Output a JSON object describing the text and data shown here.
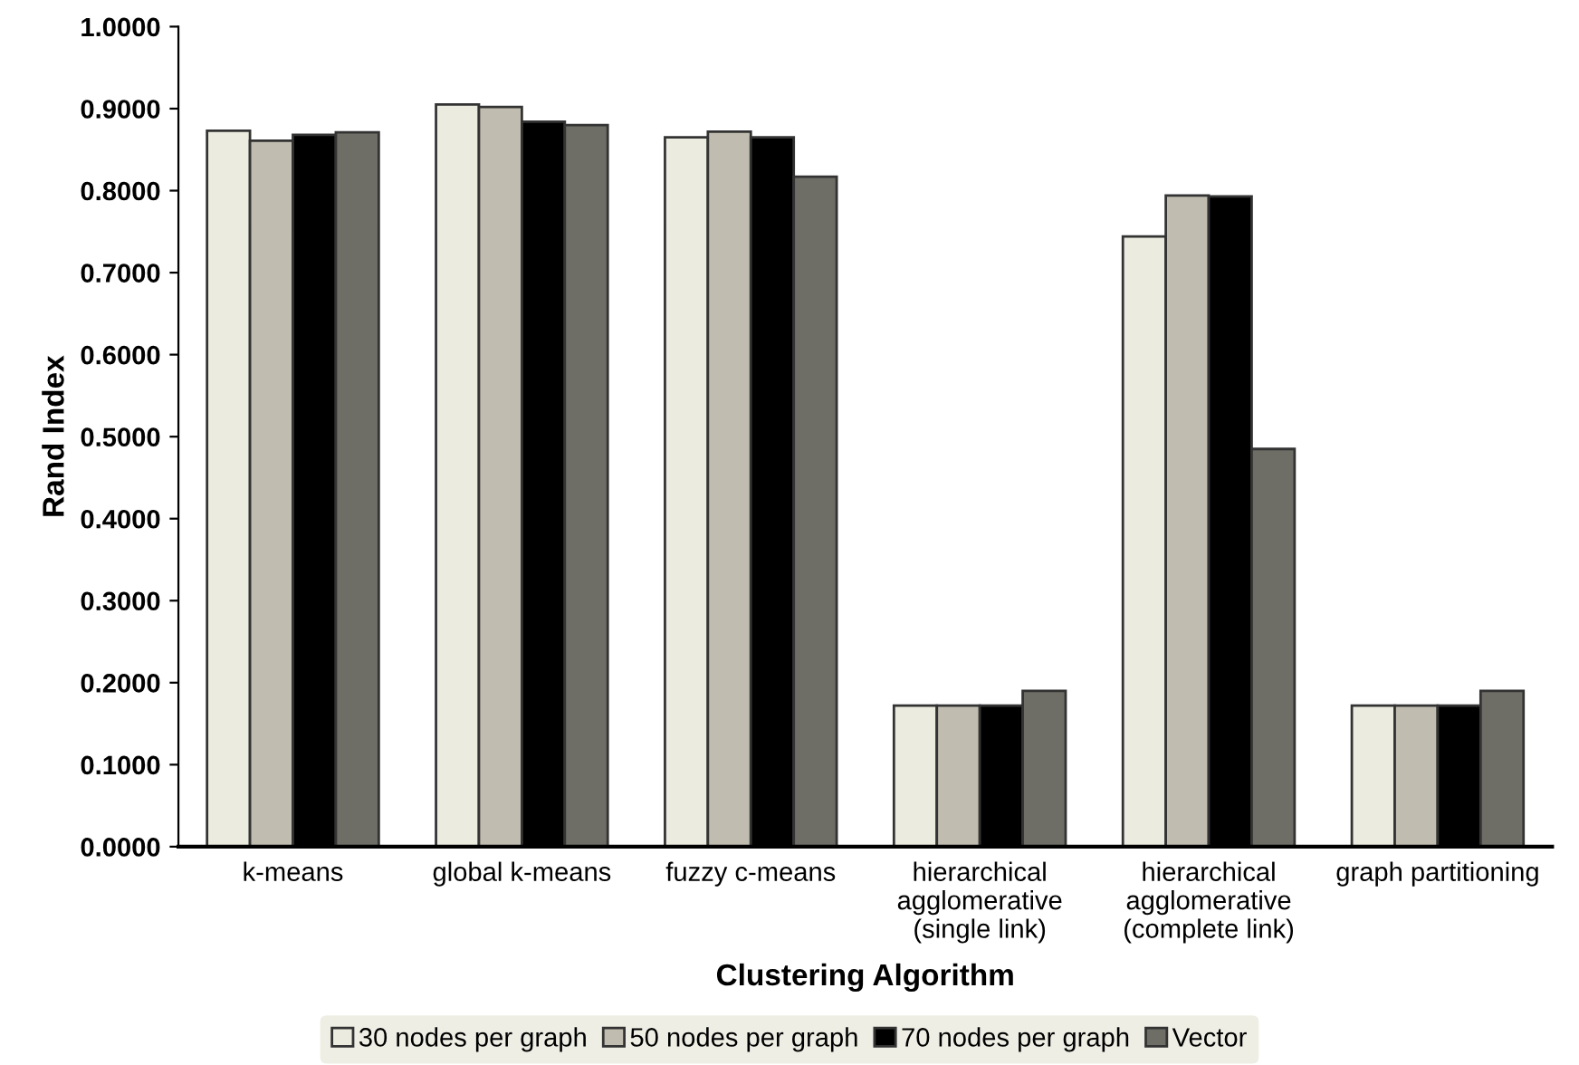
{
  "chart_data": {
    "type": "bar",
    "xlabel": "Clustering Algorithm",
    "ylabel": "Rand Index",
    "categories": [
      "k-means",
      "global k-means",
      "fuzzy c-means",
      "hierarchical\nagglomerative\n(single link)",
      "hierarchical\nagglomerative\n(complete link)",
      "graph partitioning"
    ],
    "series": [
      {
        "name": "30 nodes per graph",
        "color": "#ebebdf",
        "values": [
          0.873,
          0.905,
          0.865,
          0.172,
          0.744,
          0.172
        ]
      },
      {
        "name": "50 nodes per graph",
        "color": "#c0bdb0",
        "values": [
          0.861,
          0.902,
          0.872,
          0.172,
          0.794,
          0.172
        ]
      },
      {
        "name": "70 nodes per graph",
        "color": "#000000",
        "values": [
          0.868,
          0.884,
          0.865,
          0.172,
          0.793,
          0.172
        ]
      },
      {
        "name": "Vector",
        "color": "#6e6e66",
        "values": [
          0.871,
          0.88,
          0.817,
          0.19,
          0.485,
          0.19
        ]
      }
    ],
    "ylim": [
      0,
      1
    ],
    "yticks": [
      {
        "value": 0,
        "label": "0.0000"
      },
      {
        "value": 0.1,
        "label": "0.1000"
      },
      {
        "value": 0.2,
        "label": "0.2000"
      },
      {
        "value": 0.3,
        "label": "0.3000"
      },
      {
        "value": 0.4,
        "label": "0.4000"
      },
      {
        "value": 0.5,
        "label": "0.5000"
      },
      {
        "value": 0.6,
        "label": "0.6000"
      },
      {
        "value": 0.7,
        "label": "0.7000"
      },
      {
        "value": 0.8,
        "label": "0.8000"
      },
      {
        "value": 0.9,
        "label": "0.9000"
      },
      {
        "value": 1,
        "label": "1.0000"
      }
    ],
    "grid": false,
    "legend": "bottom"
  }
}
